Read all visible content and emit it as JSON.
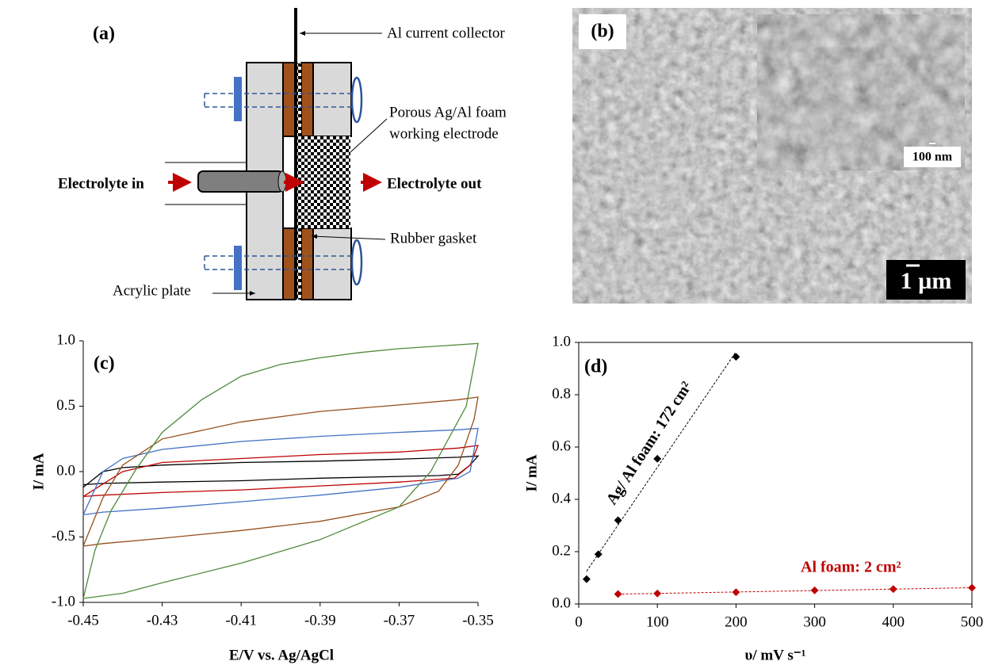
{
  "panel_a": {
    "label": "(a)",
    "collector": "Al current collector",
    "foam_line1": "Porous Ag/Al foam",
    "foam_line2": "working electrode",
    "inlet": "Electrolyte in",
    "outlet": "Electrolyte out",
    "gasket": "Rubber gasket",
    "plate": "Acrylic plate"
  },
  "panel_b": {
    "label": "(b)",
    "inset_scale": "100 nm",
    "scale": "1 µm"
  },
  "chart_data": [
    {
      "type": "line",
      "label": "(c)",
      "xlabel": "E/V vs. Ag/AgCl",
      "ylabel": "I/ mA",
      "xlim": [
        -0.45,
        -0.35
      ],
      "xticks": [
        -0.45,
        -0.43,
        -0.41,
        -0.39,
        -0.37,
        -0.35
      ],
      "ylim": [
        -1,
        1
      ],
      "yticks": [
        {
          "value": 1,
          "label": "1.0"
        },
        0.5,
        {
          "value": 0,
          "label": "0.0"
        },
        -0.5,
        {
          "value": -1,
          "label": "-1.0"
        }
      ],
      "series": [
        {
          "color": "#000000",
          "x": [
            -0.45,
            -0.445,
            -0.44,
            -0.43,
            -0.41,
            -0.39,
            -0.37,
            -0.355,
            -0.35,
            -0.352,
            -0.355,
            -0.36,
            -0.39,
            -0.41,
            -0.43,
            -0.445,
            -0.45
          ],
          "values": [
            -0.12,
            0.0,
            0.03,
            0.05,
            0.07,
            0.08,
            0.095,
            0.11,
            0.12,
            0.05,
            -0.02,
            -0.03,
            -0.05,
            -0.07,
            -0.08,
            -0.09,
            -0.1
          ]
        },
        {
          "color": "#c00000",
          "x": [
            -0.45,
            -0.44,
            -0.43,
            -0.41,
            -0.39,
            -0.37,
            -0.355,
            -0.35,
            -0.352,
            -0.356,
            -0.37,
            -0.39,
            -0.41,
            -0.43,
            -0.445,
            -0.45
          ],
          "values": [
            -0.19,
            0.0,
            0.07,
            0.1,
            0.13,
            0.15,
            0.18,
            0.2,
            0.05,
            -0.05,
            -0.08,
            -0.11,
            -0.14,
            -0.16,
            -0.18,
            -0.19
          ]
        },
        {
          "color": "#4472c4",
          "x": [
            -0.45,
            -0.445,
            -0.44,
            -0.43,
            -0.41,
            -0.39,
            -0.37,
            -0.355,
            -0.35,
            -0.352,
            -0.355,
            -0.37,
            -0.39,
            -0.41,
            -0.43,
            -0.445,
            -0.45
          ],
          "values": [
            -0.33,
            0.0,
            0.1,
            0.17,
            0.23,
            0.27,
            0.3,
            0.32,
            0.33,
            0.0,
            -0.05,
            -0.12,
            -0.18,
            -0.23,
            -0.28,
            -0.31,
            -0.33
          ]
        },
        {
          "color": "#954f1c",
          "x": [
            -0.45,
            -0.445,
            -0.44,
            -0.43,
            -0.41,
            -0.39,
            -0.37,
            -0.355,
            -0.35,
            -0.351,
            -0.355,
            -0.36,
            -0.37,
            -0.39,
            -0.41,
            -0.43,
            -0.445,
            -0.45
          ],
          "values": [
            -0.57,
            -0.2,
            0.05,
            0.25,
            0.38,
            0.46,
            0.51,
            0.55,
            0.57,
            0.4,
            0.05,
            -0.15,
            -0.27,
            -0.38,
            -0.45,
            -0.51,
            -0.55,
            -0.57
          ]
        },
        {
          "color": "#4e8a3a",
          "x": [
            -0.45,
            -0.447,
            -0.443,
            -0.437,
            -0.43,
            -0.42,
            -0.41,
            -0.4,
            -0.39,
            -0.38,
            -0.37,
            -0.36,
            -0.35,
            -0.353,
            -0.362,
            -0.37,
            -0.39,
            -0.41,
            -0.43,
            -0.44,
            -0.45
          ],
          "values": [
            -0.97,
            -0.6,
            -0.3,
            0.0,
            0.3,
            0.55,
            0.73,
            0.82,
            0.87,
            0.91,
            0.94,
            0.96,
            0.98,
            0.5,
            0.0,
            -0.27,
            -0.52,
            -0.7,
            -0.85,
            -0.93,
            -0.97
          ]
        }
      ]
    },
    {
      "type": "scatter",
      "label": "(d)",
      "xlabel": "υ/ mV s⁻¹",
      "ylabel": "I/ mA",
      "xlim": [
        0,
        500
      ],
      "xticks": [
        0,
        100,
        200,
        300,
        400,
        500
      ],
      "ylim": [
        0,
        1
      ],
      "yticks": [
        {
          "value": 0,
          "label": "0.0"
        },
        0.2,
        0.4,
        0.6,
        0.8,
        {
          "value": 1,
          "label": "1.0"
        }
      ],
      "series": [
        {
          "color": "#000000",
          "x": [
            10,
            25,
            50,
            100,
            200
          ],
          "values": [
            0.095,
            0.19,
            0.32,
            0.555,
            0.945
          ]
        },
        {
          "color": "#c00000",
          "x": [
            50,
            100,
            200,
            300,
            400,
            500
          ],
          "values": [
            0.038,
            0.04,
            0.045,
            0.052,
            0.057,
            0.062
          ]
        }
      ],
      "annotations": [
        "Ag/ Al foam: 172 cm²",
        "Al foam: 2 cm²"
      ]
    }
  ]
}
